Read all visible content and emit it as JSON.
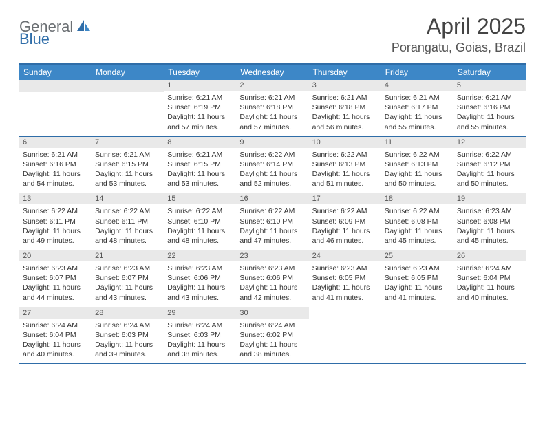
{
  "logo": {
    "text1": "General",
    "text2": "Blue"
  },
  "title": "April 2025",
  "location": "Porangatu, Goias, Brazil",
  "colors": {
    "header_blue": "#3d87c7",
    "border_blue": "#2f6da8",
    "daynum_bg": "#e9e9e9",
    "logo_gray": "#6b6f73",
    "logo_blue": "#2f6da8"
  },
  "weekdays": [
    "Sunday",
    "Monday",
    "Tuesday",
    "Wednesday",
    "Thursday",
    "Friday",
    "Saturday"
  ],
  "weeks": [
    [
      {
        "blank": true
      },
      {
        "blank": true
      },
      {
        "num": "1",
        "sunrise": "Sunrise: 6:21 AM",
        "sunset": "Sunset: 6:19 PM",
        "daylight": "Daylight: 11 hours and 57 minutes."
      },
      {
        "num": "2",
        "sunrise": "Sunrise: 6:21 AM",
        "sunset": "Sunset: 6:18 PM",
        "daylight": "Daylight: 11 hours and 57 minutes."
      },
      {
        "num": "3",
        "sunrise": "Sunrise: 6:21 AM",
        "sunset": "Sunset: 6:18 PM",
        "daylight": "Daylight: 11 hours and 56 minutes."
      },
      {
        "num": "4",
        "sunrise": "Sunrise: 6:21 AM",
        "sunset": "Sunset: 6:17 PM",
        "daylight": "Daylight: 11 hours and 55 minutes."
      },
      {
        "num": "5",
        "sunrise": "Sunrise: 6:21 AM",
        "sunset": "Sunset: 6:16 PM",
        "daylight": "Daylight: 11 hours and 55 minutes."
      }
    ],
    [
      {
        "num": "6",
        "sunrise": "Sunrise: 6:21 AM",
        "sunset": "Sunset: 6:16 PM",
        "daylight": "Daylight: 11 hours and 54 minutes."
      },
      {
        "num": "7",
        "sunrise": "Sunrise: 6:21 AM",
        "sunset": "Sunset: 6:15 PM",
        "daylight": "Daylight: 11 hours and 53 minutes."
      },
      {
        "num": "8",
        "sunrise": "Sunrise: 6:21 AM",
        "sunset": "Sunset: 6:15 PM",
        "daylight": "Daylight: 11 hours and 53 minutes."
      },
      {
        "num": "9",
        "sunrise": "Sunrise: 6:22 AM",
        "sunset": "Sunset: 6:14 PM",
        "daylight": "Daylight: 11 hours and 52 minutes."
      },
      {
        "num": "10",
        "sunrise": "Sunrise: 6:22 AM",
        "sunset": "Sunset: 6:13 PM",
        "daylight": "Daylight: 11 hours and 51 minutes."
      },
      {
        "num": "11",
        "sunrise": "Sunrise: 6:22 AM",
        "sunset": "Sunset: 6:13 PM",
        "daylight": "Daylight: 11 hours and 50 minutes."
      },
      {
        "num": "12",
        "sunrise": "Sunrise: 6:22 AM",
        "sunset": "Sunset: 6:12 PM",
        "daylight": "Daylight: 11 hours and 50 minutes."
      }
    ],
    [
      {
        "num": "13",
        "sunrise": "Sunrise: 6:22 AM",
        "sunset": "Sunset: 6:11 PM",
        "daylight": "Daylight: 11 hours and 49 minutes."
      },
      {
        "num": "14",
        "sunrise": "Sunrise: 6:22 AM",
        "sunset": "Sunset: 6:11 PM",
        "daylight": "Daylight: 11 hours and 48 minutes."
      },
      {
        "num": "15",
        "sunrise": "Sunrise: 6:22 AM",
        "sunset": "Sunset: 6:10 PM",
        "daylight": "Daylight: 11 hours and 48 minutes."
      },
      {
        "num": "16",
        "sunrise": "Sunrise: 6:22 AM",
        "sunset": "Sunset: 6:10 PM",
        "daylight": "Daylight: 11 hours and 47 minutes."
      },
      {
        "num": "17",
        "sunrise": "Sunrise: 6:22 AM",
        "sunset": "Sunset: 6:09 PM",
        "daylight": "Daylight: 11 hours and 46 minutes."
      },
      {
        "num": "18",
        "sunrise": "Sunrise: 6:22 AM",
        "sunset": "Sunset: 6:08 PM",
        "daylight": "Daylight: 11 hours and 45 minutes."
      },
      {
        "num": "19",
        "sunrise": "Sunrise: 6:23 AM",
        "sunset": "Sunset: 6:08 PM",
        "daylight": "Daylight: 11 hours and 45 minutes."
      }
    ],
    [
      {
        "num": "20",
        "sunrise": "Sunrise: 6:23 AM",
        "sunset": "Sunset: 6:07 PM",
        "daylight": "Daylight: 11 hours and 44 minutes."
      },
      {
        "num": "21",
        "sunrise": "Sunrise: 6:23 AM",
        "sunset": "Sunset: 6:07 PM",
        "daylight": "Daylight: 11 hours and 43 minutes."
      },
      {
        "num": "22",
        "sunrise": "Sunrise: 6:23 AM",
        "sunset": "Sunset: 6:06 PM",
        "daylight": "Daylight: 11 hours and 43 minutes."
      },
      {
        "num": "23",
        "sunrise": "Sunrise: 6:23 AM",
        "sunset": "Sunset: 6:06 PM",
        "daylight": "Daylight: 11 hours and 42 minutes."
      },
      {
        "num": "24",
        "sunrise": "Sunrise: 6:23 AM",
        "sunset": "Sunset: 6:05 PM",
        "daylight": "Daylight: 11 hours and 41 minutes."
      },
      {
        "num": "25",
        "sunrise": "Sunrise: 6:23 AM",
        "sunset": "Sunset: 6:05 PM",
        "daylight": "Daylight: 11 hours and 41 minutes."
      },
      {
        "num": "26",
        "sunrise": "Sunrise: 6:24 AM",
        "sunset": "Sunset: 6:04 PM",
        "daylight": "Daylight: 11 hours and 40 minutes."
      }
    ],
    [
      {
        "num": "27",
        "sunrise": "Sunrise: 6:24 AM",
        "sunset": "Sunset: 6:04 PM",
        "daylight": "Daylight: 11 hours and 40 minutes."
      },
      {
        "num": "28",
        "sunrise": "Sunrise: 6:24 AM",
        "sunset": "Sunset: 6:03 PM",
        "daylight": "Daylight: 11 hours and 39 minutes."
      },
      {
        "num": "29",
        "sunrise": "Sunrise: 6:24 AM",
        "sunset": "Sunset: 6:03 PM",
        "daylight": "Daylight: 11 hours and 38 minutes."
      },
      {
        "num": "30",
        "sunrise": "Sunrise: 6:24 AM",
        "sunset": "Sunset: 6:02 PM",
        "daylight": "Daylight: 11 hours and 38 minutes."
      },
      {
        "blank": true
      },
      {
        "blank": true
      },
      {
        "blank": true
      }
    ]
  ]
}
